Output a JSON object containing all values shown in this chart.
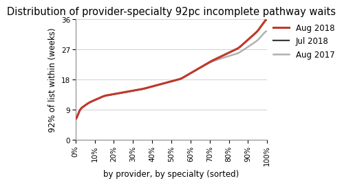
{
  "title": "Distribution of provider-specialty 92pc incomplete pathway waits",
  "xlabel": "by provider, by specialty (sorted)",
  "ylabel": "92% of list within (weeks)",
  "ylim": [
    0,
    36
  ],
  "yticks": [
    0,
    9,
    18,
    27,
    36
  ],
  "xlim": [
    0,
    1
  ],
  "xticks": [
    0.0,
    0.1,
    0.2,
    0.3,
    0.4,
    0.5,
    0.6,
    0.7,
    0.8,
    0.9,
    1.0
  ],
  "xtick_labels": [
    "0%",
    "10%",
    "20%",
    "30%",
    "40%",
    "50%",
    "60%",
    "70%",
    "80%",
    "90%",
    "100%"
  ],
  "lines": {
    "Aug 2018": {
      "color": "#c0392b",
      "linewidth": 2.2,
      "zorder": 4
    },
    "Jul 2018": {
      "color": "#3a3a3a",
      "linewidth": 1.6,
      "zorder": 3
    },
    "Aug 2017": {
      "color": "#b0b0b0",
      "linewidth": 1.8,
      "zorder": 2
    }
  },
  "legend_order": [
    "Aug 2018",
    "Jul 2018",
    "Aug 2017"
  ],
  "background_color": "#ffffff",
  "grid_color": "#d0d0d0",
  "title_fontsize": 10.5,
  "axis_label_fontsize": 8.5,
  "tick_fontsize": 7.5,
  "legend_fontsize": 8.5
}
